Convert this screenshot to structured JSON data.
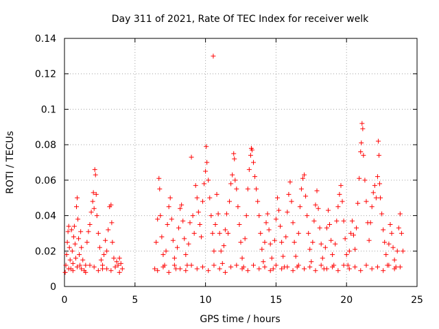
{
  "chart_data": {
    "type": "scatter",
    "title": "Day 311 of 2021, Rate Of TEC Index for receiver welk",
    "xlabel": "GPS time / hours",
    "ylabel": "ROTI / TECUs",
    "xlim": [
      0,
      25
    ],
    "ylim": [
      0,
      0.14
    ],
    "xticks": [
      0,
      5,
      10,
      15,
      20,
      25
    ],
    "xtick_labels": [
      "0",
      "5",
      "10",
      "15",
      "20",
      "25"
    ],
    "yticks": [
      0,
      0.02,
      0.04,
      0.06,
      0.08,
      0.1,
      0.12,
      0.14
    ],
    "ytick_labels": [
      "0",
      "0.02",
      "0.04",
      "0.06",
      "0.08",
      "0.1",
      "0.12",
      "0.14"
    ],
    "grid": true,
    "marker": "+",
    "series": [
      {
        "name": "ROTI",
        "color": "#ff0000",
        "points": [
          [
            0.05,
            0.008
          ],
          [
            0.1,
            0.012
          ],
          [
            0.15,
            0.018
          ],
          [
            0.2,
            0.025
          ],
          [
            0.25,
            0.031
          ],
          [
            0.3,
            0.034
          ],
          [
            0.35,
            0.022
          ],
          [
            0.4,
            0.015
          ],
          [
            0.45,
            0.01
          ],
          [
            0.5,
            0.032
          ],
          [
            0.55,
            0.02
          ],
          [
            0.6,
            0.013
          ],
          [
            0.65,
            0.028
          ],
          [
            0.7,
            0.034
          ],
          [
            0.75,
            0.024
          ],
          [
            0.8,
            0.016
          ],
          [
            0.85,
            0.045
          ],
          [
            0.9,
            0.05
          ],
          [
            0.95,
            0.038
          ],
          [
            1.0,
            0.027
          ],
          [
            1.05,
            0.018
          ],
          [
            1.1,
            0.012
          ],
          [
            1.15,
            0.031
          ],
          [
            1.2,
            0.022
          ],
          [
            1.3,
            0.015
          ],
          [
            1.4,
            0.009
          ],
          [
            1.5,
            0.012
          ],
          [
            1.6,
            0.025
          ],
          [
            1.7,
            0.031
          ],
          [
            1.8,
            0.035
          ],
          [
            1.9,
            0.042
          ],
          [
            2.0,
            0.048
          ],
          [
            2.05,
            0.053
          ],
          [
            2.1,
            0.044
          ],
          [
            2.15,
            0.066
          ],
          [
            2.2,
            0.063
          ],
          [
            2.25,
            0.052
          ],
          [
            2.3,
            0.04
          ],
          [
            2.4,
            0.03
          ],
          [
            2.5,
            0.022
          ],
          [
            2.6,
            0.015
          ],
          [
            2.7,
            0.01
          ],
          [
            2.8,
            0.018
          ],
          [
            2.9,
            0.026
          ],
          [
            3.0,
            0.02
          ],
          [
            3.1,
            0.032
          ],
          [
            3.2,
            0.045
          ],
          [
            3.3,
            0.046
          ],
          [
            3.35,
            0.036
          ],
          [
            3.4,
            0.025
          ],
          [
            3.5,
            0.016
          ],
          [
            3.6,
            0.011
          ],
          [
            3.7,
            0.014
          ],
          [
            3.8,
            0.012
          ],
          [
            3.9,
            0.016
          ],
          [
            4.0,
            0.013
          ],
          [
            4.1,
            0.01
          ],
          [
            0.3,
            0.01
          ],
          [
            0.6,
            0.009
          ],
          [
            0.9,
            0.011
          ],
          [
            1.2,
            0.01
          ],
          [
            1.5,
            0.008
          ],
          [
            1.8,
            0.012
          ],
          [
            2.1,
            0.011
          ],
          [
            2.4,
            0.009
          ],
          [
            2.7,
            0.012
          ],
          [
            3.0,
            0.01
          ],
          [
            3.3,
            0.009
          ],
          [
            3.6,
            0.011
          ],
          [
            3.9,
            0.008
          ],
          [
            6.4,
            0.01
          ],
          [
            6.5,
            0.025
          ],
          [
            6.6,
            0.038
          ],
          [
            6.7,
            0.061
          ],
          [
            6.75,
            0.055
          ],
          [
            6.8,
            0.04
          ],
          [
            6.9,
            0.028
          ],
          [
            7.0,
            0.018
          ],
          [
            7.1,
            0.012
          ],
          [
            7.2,
            0.02
          ],
          [
            7.3,
            0.035
          ],
          [
            7.4,
            0.045
          ],
          [
            7.5,
            0.05
          ],
          [
            7.6,
            0.038
          ],
          [
            7.7,
            0.026
          ],
          [
            7.8,
            0.016
          ],
          [
            7.9,
            0.01
          ],
          [
            8.0,
            0.022
          ],
          [
            8.1,
            0.033
          ],
          [
            8.2,
            0.044
          ],
          [
            8.3,
            0.046
          ],
          [
            8.4,
            0.037
          ],
          [
            8.5,
            0.027
          ],
          [
            8.6,
            0.018
          ],
          [
            8.7,
            0.012
          ],
          [
            8.8,
            0.024
          ],
          [
            8.9,
            0.036
          ],
          [
            9.0,
            0.073
          ],
          [
            9.1,
            0.04
          ],
          [
            9.2,
            0.03
          ],
          [
            9.3,
            0.057
          ],
          [
            9.4,
            0.05
          ],
          [
            9.5,
            0.042
          ],
          [
            9.6,
            0.035
          ],
          [
            9.7,
            0.028
          ],
          [
            9.8,
            0.048
          ],
          [
            9.9,
            0.058
          ],
          [
            10.0,
            0.065
          ],
          [
            10.05,
            0.079
          ],
          [
            10.1,
            0.07
          ],
          [
            10.2,
            0.06
          ],
          [
            10.3,
            0.05
          ],
          [
            10.4,
            0.04
          ],
          [
            10.5,
            0.03
          ],
          [
            10.55,
            0.13
          ],
          [
            10.6,
            0.02
          ],
          [
            10.7,
            0.035
          ],
          [
            10.8,
            0.052
          ],
          [
            10.9,
            0.041
          ],
          [
            11.0,
            0.03
          ],
          [
            11.1,
            0.02
          ],
          [
            11.2,
            0.013
          ],
          [
            11.3,
            0.023
          ],
          [
            11.4,
            0.032
          ],
          [
            11.5,
            0.041
          ],
          [
            11.6,
            0.03
          ],
          [
            11.7,
            0.048
          ],
          [
            11.8,
            0.058
          ],
          [
            11.9,
            0.063
          ],
          [
            12.0,
            0.075
          ],
          [
            12.05,
            0.072
          ],
          [
            12.1,
            0.06
          ],
          [
            12.2,
            0.055
          ],
          [
            12.3,
            0.045
          ],
          [
            12.4,
            0.035
          ],
          [
            12.5,
            0.025
          ],
          [
            12.6,
            0.016
          ],
          [
            12.7,
            0.011
          ],
          [
            12.8,
            0.027
          ],
          [
            12.9,
            0.04
          ],
          [
            13.0,
            0.055
          ],
          [
            13.1,
            0.066
          ],
          [
            13.2,
            0.074
          ],
          [
            13.25,
            0.078
          ],
          [
            13.3,
            0.077
          ],
          [
            13.4,
            0.07
          ],
          [
            13.5,
            0.062
          ],
          [
            13.6,
            0.055
          ],
          [
            13.7,
            0.048
          ],
          [
            13.8,
            0.04
          ],
          [
            13.9,
            0.03
          ],
          [
            14.0,
            0.021
          ],
          [
            14.1,
            0.014
          ],
          [
            14.2,
            0.025
          ],
          [
            14.3,
            0.036
          ],
          [
            14.4,
            0.041
          ],
          [
            14.5,
            0.032
          ],
          [
            14.6,
            0.024
          ],
          [
            14.7,
            0.016
          ],
          [
            14.8,
            0.01
          ],
          [
            14.9,
            0.026
          ],
          [
            15.0,
            0.038
          ],
          [
            15.1,
            0.05
          ],
          [
            15.2,
            0.043
          ],
          [
            15.3,
            0.034
          ],
          [
            15.4,
            0.025
          ],
          [
            15.5,
            0.017
          ],
          [
            15.6,
            0.011
          ],
          [
            15.7,
            0.028
          ],
          [
            15.8,
            0.042
          ],
          [
            15.9,
            0.052
          ],
          [
            16.0,
            0.059
          ],
          [
            16.1,
            0.048
          ],
          [
            16.2,
            0.036
          ],
          [
            16.3,
            0.025
          ],
          [
            16.4,
            0.017
          ],
          [
            16.5,
            0.011
          ],
          [
            16.6,
            0.03
          ],
          [
            16.7,
            0.045
          ],
          [
            16.8,
            0.055
          ],
          [
            16.9,
            0.061
          ],
          [
            17.0,
            0.063
          ],
          [
            17.1,
            0.051
          ],
          [
            17.2,
            0.04
          ],
          [
            17.3,
            0.03
          ],
          [
            17.4,
            0.021
          ],
          [
            17.5,
            0.014
          ],
          [
            17.6,
            0.025
          ],
          [
            17.7,
            0.037
          ],
          [
            17.8,
            0.046
          ],
          [
            17.9,
            0.054
          ],
          [
            18.0,
            0.044
          ],
          [
            18.1,
            0.033
          ],
          [
            18.2,
            0.024
          ],
          [
            18.3,
            0.016
          ],
          [
            18.4,
            0.01
          ],
          [
            18.5,
            0.022
          ],
          [
            18.6,
            0.033
          ],
          [
            18.7,
            0.043
          ],
          [
            18.8,
            0.035
          ],
          [
            18.9,
            0.026
          ],
          [
            19.0,
            0.018
          ],
          [
            19.1,
            0.012
          ],
          [
            19.2,
            0.024
          ],
          [
            19.3,
            0.037
          ],
          [
            19.4,
            0.045
          ],
          [
            19.5,
            0.052
          ],
          [
            19.6,
            0.057
          ],
          [
            19.7,
            0.048
          ],
          [
            19.8,
            0.037
          ],
          [
            19.9,
            0.027
          ],
          [
            20.0,
            0.018
          ],
          [
            20.1,
            0.012
          ],
          [
            20.2,
            0.02
          ],
          [
            20.3,
            0.03
          ],
          [
            20.4,
            0.037
          ],
          [
            20.5,
            0.029
          ],
          [
            20.6,
            0.021
          ],
          [
            20.7,
            0.033
          ],
          [
            20.8,
            0.047
          ],
          [
            20.9,
            0.061
          ],
          [
            21.0,
            0.076
          ],
          [
            21.05,
            0.081
          ],
          [
            21.1,
            0.092
          ],
          [
            21.15,
            0.089
          ],
          [
            21.2,
            0.074
          ],
          [
            21.3,
            0.06
          ],
          [
            21.4,
            0.048
          ],
          [
            21.5,
            0.036
          ],
          [
            21.6,
            0.026
          ],
          [
            21.7,
            0.036
          ],
          [
            21.8,
            0.045
          ],
          [
            21.9,
            0.053
          ],
          [
            22.0,
            0.057
          ],
          [
            22.1,
            0.05
          ],
          [
            22.2,
            0.062
          ],
          [
            22.25,
            0.082
          ],
          [
            22.3,
            0.074
          ],
          [
            22.35,
            0.058
          ],
          [
            22.4,
            0.05
          ],
          [
            22.5,
            0.041
          ],
          [
            22.6,
            0.032
          ],
          [
            22.7,
            0.025
          ],
          [
            22.8,
            0.018
          ],
          [
            22.9,
            0.012
          ],
          [
            23.0,
            0.024
          ],
          [
            23.1,
            0.035
          ],
          [
            23.2,
            0.03
          ],
          [
            23.3,
            0.022
          ],
          [
            23.4,
            0.015
          ],
          [
            23.5,
            0.011
          ],
          [
            23.6,
            0.02
          ],
          [
            23.7,
            0.033
          ],
          [
            23.8,
            0.041
          ],
          [
            23.9,
            0.03
          ],
          [
            24.0,
            0.02
          ],
          [
            6.6,
            0.009
          ],
          [
            7.0,
            0.011
          ],
          [
            7.4,
            0.008
          ],
          [
            7.8,
            0.012
          ],
          [
            8.2,
            0.01
          ],
          [
            8.6,
            0.009
          ],
          [
            9.0,
            0.012
          ],
          [
            9.4,
            0.01
          ],
          [
            9.8,
            0.011
          ],
          [
            10.2,
            0.009
          ],
          [
            10.6,
            0.012
          ],
          [
            11.0,
            0.01
          ],
          [
            11.4,
            0.008
          ],
          [
            11.8,
            0.011
          ],
          [
            12.2,
            0.012
          ],
          [
            12.6,
            0.01
          ],
          [
            13.0,
            0.009
          ],
          [
            13.4,
            0.012
          ],
          [
            13.8,
            0.01
          ],
          [
            14.2,
            0.011
          ],
          [
            14.6,
            0.009
          ],
          [
            15.0,
            0.012
          ],
          [
            15.4,
            0.01
          ],
          [
            15.8,
            0.011
          ],
          [
            16.2,
            0.009
          ],
          [
            16.6,
            0.012
          ],
          [
            17.0,
            0.01
          ],
          [
            17.4,
            0.011
          ],
          [
            17.8,
            0.009
          ],
          [
            18.2,
            0.012
          ],
          [
            18.6,
            0.01
          ],
          [
            19.0,
            0.011
          ],
          [
            19.4,
            0.009
          ],
          [
            19.8,
            0.012
          ],
          [
            20.2,
            0.01
          ],
          [
            20.6,
            0.011
          ],
          [
            21.0,
            0.009
          ],
          [
            21.4,
            0.012
          ],
          [
            21.8,
            0.01
          ],
          [
            22.2,
            0.011
          ],
          [
            22.6,
            0.009
          ],
          [
            23.0,
            0.012
          ],
          [
            23.4,
            0.01
          ],
          [
            23.8,
            0.011
          ]
        ]
      }
    ]
  }
}
